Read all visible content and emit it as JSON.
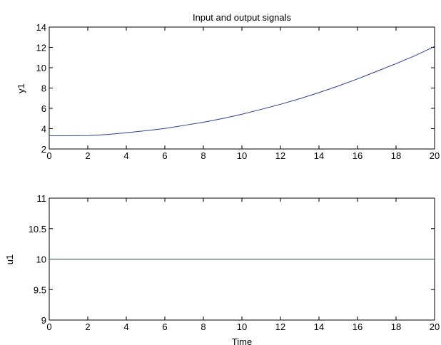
{
  "chart_data": [
    {
      "type": "line",
      "title": "Input and output signals",
      "xlabel": "",
      "ylabel": "y1",
      "xlim": [
        0,
        20
      ],
      "ylim": [
        2,
        14
      ],
      "xticks": [
        "0",
        "2",
        "4",
        "6",
        "8",
        "10",
        "12",
        "14",
        "16",
        "18",
        "20"
      ],
      "yticks": [
        "2",
        "4",
        "6",
        "8",
        "10",
        "12",
        "14"
      ],
      "grid": false,
      "line_color": "#2a3f8f",
      "x": [
        0,
        1,
        2,
        3,
        4,
        5,
        6,
        7,
        8,
        9,
        10,
        11,
        12,
        13,
        14,
        15,
        16,
        17,
        18,
        19,
        20
      ],
      "y": [
        3.3,
        3.3,
        3.32,
        3.42,
        3.6,
        3.8,
        4.02,
        4.32,
        4.63,
        5.0,
        5.42,
        5.9,
        6.4,
        6.95,
        7.55,
        8.2,
        8.9,
        9.65,
        10.4,
        11.2,
        12.1
      ]
    },
    {
      "type": "line",
      "title": "",
      "xlabel": "Time",
      "ylabel": "u1",
      "xlim": [
        0,
        20
      ],
      "ylim": [
        9,
        11
      ],
      "xticks": [
        "0",
        "2",
        "4",
        "6",
        "8",
        "10",
        "12",
        "14",
        "16",
        "18",
        "20"
      ],
      "yticks": [
        "9",
        "9.5",
        "10",
        "10.5",
        "11"
      ],
      "grid": false,
      "line_color": "#1f4a4a",
      "x": [
        0,
        20
      ],
      "y": [
        10,
        10
      ]
    }
  ]
}
